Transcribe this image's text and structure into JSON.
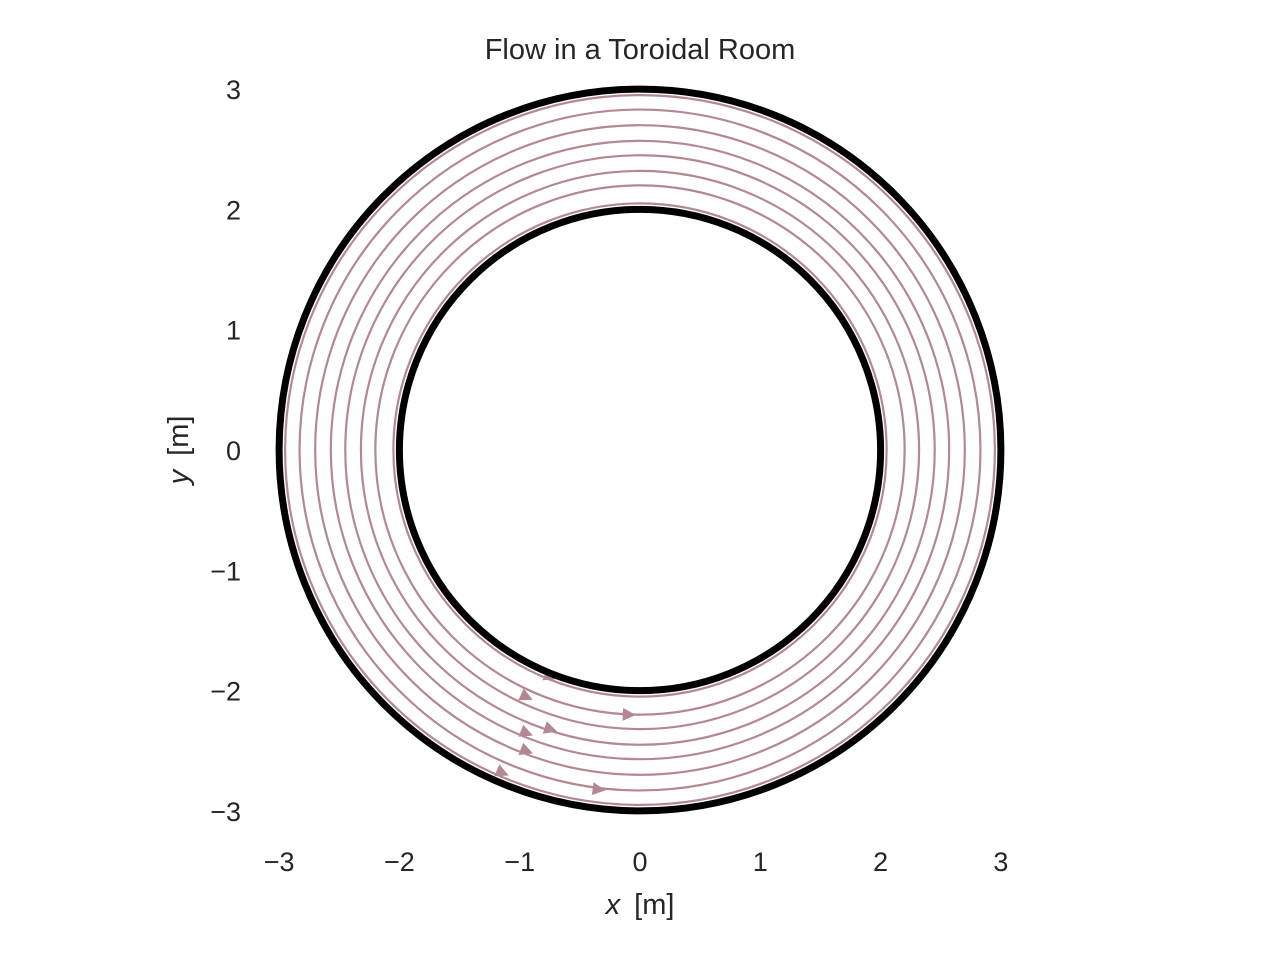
{
  "chart_data": {
    "type": "streamplot",
    "title": "Flow in a Toroidal Room",
    "xlabel_var": "x",
    "xlabel_unit": "[m]",
    "ylabel_var": "y",
    "ylabel_unit": "[m]",
    "xlim": [
      -3,
      3
    ],
    "ylim": [
      -3,
      3
    ],
    "xticks": [
      -3,
      -2,
      -1,
      0,
      1,
      2,
      3
    ],
    "yticks": [
      -3,
      -2,
      -1,
      0,
      1,
      2,
      3
    ],
    "xtick_labels": [
      "−3",
      "−2",
      "−1",
      "0",
      "1",
      "2",
      "3"
    ],
    "ytick_labels": [
      "−3",
      "−2",
      "−1",
      "0",
      "1",
      "2",
      "3"
    ],
    "grid": false,
    "walls": {
      "inner_radius": 2.0,
      "outer_radius": 3.0,
      "color": "#000000"
    },
    "streamlines": {
      "color": "#b48891",
      "direction": "counter-clockwise",
      "radii": [
        2.05,
        2.2,
        2.32,
        2.45,
        2.57,
        2.7,
        2.83,
        2.95
      ],
      "arrows": [
        {
          "x": -0.75,
          "y": -1.88
        },
        {
          "x": -0.95,
          "y": -2.05
        },
        {
          "x": -0.1,
          "y": -2.2
        },
        {
          "x": -0.75,
          "y": -2.32
        },
        {
          "x": -0.95,
          "y": -2.35
        },
        {
          "x": -0.95,
          "y": -2.5
        },
        {
          "x": -1.15,
          "y": -2.68
        },
        {
          "x": -0.35,
          "y": -2.82
        }
      ]
    }
  }
}
